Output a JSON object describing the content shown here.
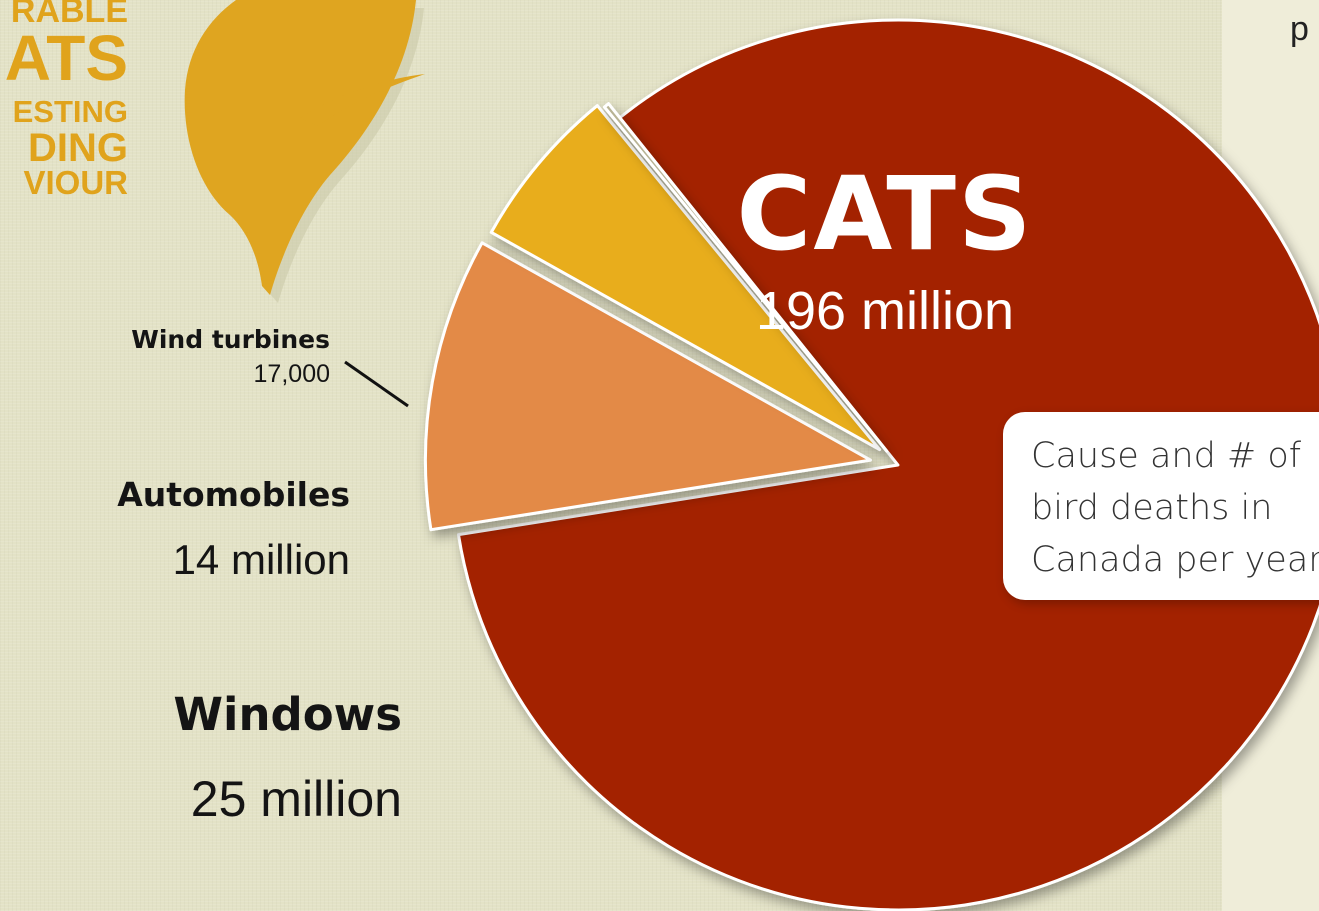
{
  "chart_data": {
    "type": "pie",
    "categories": [
      "CATS",
      "Windows",
      "Automobiles",
      "Wind turbines"
    ],
    "values": [
      196000000,
      25000000,
      14000000,
      17000
    ],
    "value_labels": [
      "196 million",
      "25 million",
      "14 million",
      "17,000"
    ],
    "colors": [
      "#a32300",
      "#e38a46",
      "#e8ad1d",
      "#b8b394"
    ],
    "exploded": true,
    "annotation": "Cause and # of bird deaths in Canada per year"
  },
  "labels": {
    "cats": {
      "name": "CATS",
      "value": "196 million"
    },
    "windows": {
      "name": "Windows",
      "value": "25 million"
    },
    "automobiles": {
      "name": "Automobiles",
      "value": "14 million"
    },
    "wind": {
      "name": "Wind turbines",
      "value": "17,000"
    }
  },
  "callout_text": "Cause and # of bird deaths in Canada per year",
  "right_panel_text": "p",
  "sidebar_words": [
    "RABLE",
    "ATS",
    "ESTING",
    "DING",
    "VIOUR"
  ],
  "colors": {
    "background": "#e3e2c6",
    "bird": "#dfa520"
  },
  "decor": {
    "bird": "bird-silhouette-icon"
  }
}
